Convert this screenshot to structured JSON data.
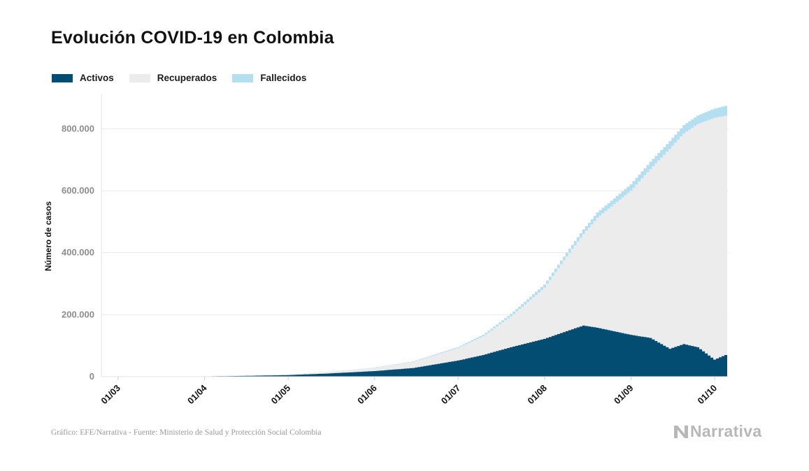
{
  "title": "Evolución COVID-19 en Colombia",
  "legend": [
    {
      "label": "Activos",
      "color": "#034d73"
    },
    {
      "label": "Recuperados",
      "color": "#ececec"
    },
    {
      "label": "Fallecidos",
      "color": "#b3dff0"
    }
  ],
  "source": "Gráfico: EFE/Narrativa - Fuente: Ministerio de Salud y Protección Social Colombia",
  "brand": "Narrativa",
  "chart_data": {
    "type": "area",
    "stacked": true,
    "title": "Evolución COVID-19 en Colombia",
    "ylabel": "Número de casos",
    "xlabel": "",
    "ylim": [
      0,
      900000
    ],
    "yticks": [
      0,
      200000,
      400000,
      600000,
      800000
    ],
    "ytick_labels": [
      "0",
      "200.000",
      "400.000",
      "600.000",
      "800.000"
    ],
    "x_range": [
      "2020-02-24",
      "2020-10-06"
    ],
    "xticks": [
      "2020-03-01",
      "2020-04-01",
      "2020-05-01",
      "2020-06-01",
      "2020-07-01",
      "2020-08-01",
      "2020-09-01",
      "2020-10-01"
    ],
    "xtick_labels": [
      "01/03",
      "01/04",
      "01/05",
      "01/06",
      "01/07",
      "01/08",
      "01/09",
      "01/10"
    ],
    "grid": true,
    "legend_position": "top-left",
    "x": [
      "2020-03-06",
      "2020-03-20",
      "2020-04-01",
      "2020-04-15",
      "2020-05-01",
      "2020-05-15",
      "2020-06-01",
      "2020-06-15",
      "2020-07-01",
      "2020-07-10",
      "2020-07-20",
      "2020-08-01",
      "2020-08-10",
      "2020-08-15",
      "2020-08-20",
      "2020-09-01",
      "2020-09-08",
      "2020-09-15",
      "2020-09-20",
      "2020-09-25",
      "2020-10-01",
      "2020-10-05"
    ],
    "series": [
      {
        "name": "Activos",
        "values": [
          1,
          200,
          1000,
          2500,
          5000,
          10000,
          18000,
          28000,
          52000,
          70000,
          95000,
          122000,
          150000,
          165000,
          158000,
          135000,
          125000,
          90000,
          105000,
          95000,
          55000,
          70000
        ]
      },
      {
        "name": "Recuperados",
        "values": [
          0,
          0,
          200,
          800,
          2000,
          4500,
          10000,
          20000,
          40000,
          60000,
          100000,
          165000,
          250000,
          295000,
          355000,
          465000,
          545000,
          645000,
          680000,
          720000,
          780000,
          772000
        ]
      },
      {
        "name": "Fallecidos",
        "values": [
          0,
          0,
          50,
          150,
          300,
          600,
          1100,
          1800,
          3500,
          5000,
          7500,
          10500,
          13000,
          15000,
          17000,
          21000,
          23500,
          25500,
          27000,
          28000,
          30000,
          32000
        ]
      }
    ]
  }
}
